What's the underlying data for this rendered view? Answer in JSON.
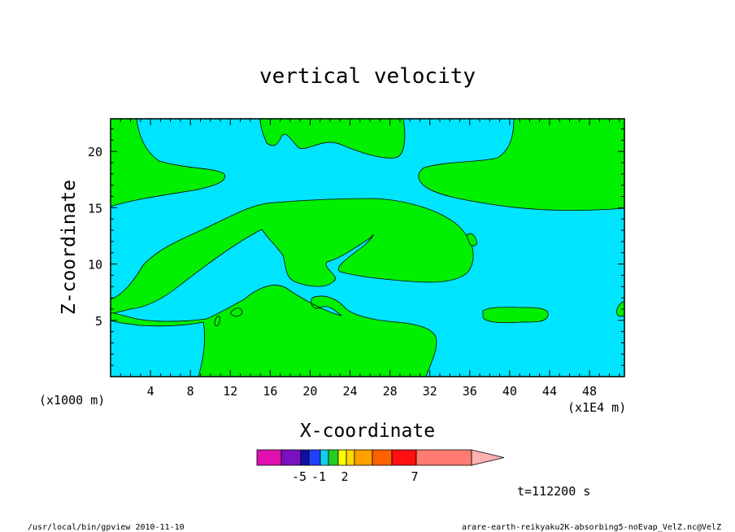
{
  "chart_data": {
    "type": "heatmap",
    "title": "vertical velocity",
    "xlabel": "X-coordinate",
    "ylabel": "Z-coordinate",
    "x_unit": "(x1E4 m)",
    "y_unit": "(x1000 m)",
    "xlim": [
      0,
      51.5
    ],
    "ylim": [
      0,
      22.9
    ],
    "xticks": [
      "4",
      "8",
      "12",
      "16",
      "20",
      "24",
      "28",
      "32",
      "36",
      "40",
      "44",
      "48"
    ],
    "yticks": [
      "5",
      "10",
      "15",
      "20"
    ],
    "colorbar": {
      "colors": [
        "#e010b0",
        "#7a10c0",
        "#1010a0",
        "#2040ff",
        "#10d0f0",
        "#20d020",
        "#ffff00",
        "#ffd800",
        "#ffa000",
        "#ff6000",
        "#ff1010",
        "#ff7b72",
        "#ffb0b0"
      ],
      "labels": [
        {
          "text": "-5",
          "value": -5
        },
        {
          "text": "-1",
          "value": -1
        },
        {
          "text": "2",
          "value": 2
        },
        {
          "text": "7",
          "value": 7
        }
      ]
    },
    "field_colors": {
      "negative": "#00e5ff",
      "positive": "#00f000"
    },
    "time_label": "t=112200 s",
    "footer_left": "/usr/local/bin/gpview  2010-11-10",
    "footer_right": "arare-earth-reikyaku2K-absorbing5-noEvap_VelZ.nc@VelZ"
  }
}
